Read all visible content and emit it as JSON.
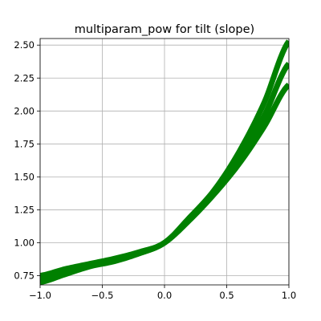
{
  "chart_data": {
    "type": "line",
    "title": "multiparam_pow for tilt (slope)",
    "xlabel": "",
    "ylabel": "",
    "xlim": [
      -1.0,
      1.0
    ],
    "ylim": [
      0.68,
      2.55
    ],
    "grid": true,
    "color": "#008000",
    "x_ticks": [
      -1.0,
      -0.5,
      0.0,
      0.5,
      1.0
    ],
    "x_tick_labels": [
      "−1.0",
      "−0.5",
      "0.0",
      "0.5",
      "1.0"
    ],
    "y_ticks": [
      0.75,
      1.0,
      1.25,
      1.5,
      1.75,
      2.0,
      2.25,
      2.5
    ],
    "y_tick_labels": [
      "0.75",
      "1.00",
      "1.25",
      "1.50",
      "1.75",
      "2.00",
      "2.25",
      "2.50"
    ],
    "x": [
      -1.0,
      -0.8,
      -0.6,
      -0.4,
      -0.2,
      0.0,
      0.2,
      0.4,
      0.6,
      0.8,
      1.0
    ],
    "series": [
      {
        "values": [
          0.75,
          0.8,
          0.84,
          0.88,
          0.93,
          1.0,
          1.19,
          1.4,
          1.69,
          2.06,
          2.53
        ]
      },
      {
        "values": [
          0.73,
          0.78,
          0.83,
          0.87,
          0.92,
          1.0,
          1.18,
          1.39,
          1.65,
          1.96,
          2.36
        ]
      },
      {
        "values": [
          0.7,
          0.76,
          0.82,
          0.86,
          0.92,
          1.0,
          1.17,
          1.37,
          1.6,
          1.88,
          2.2
        ]
      }
    ]
  }
}
